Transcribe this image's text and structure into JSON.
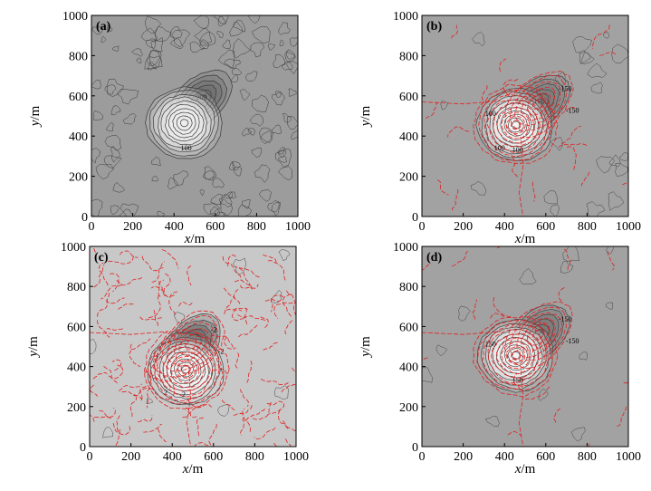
{
  "chart_data": [
    {
      "type": "contour",
      "panel_label": "(a)",
      "xlabel_var": "x",
      "xlabel_unit": "/m",
      "ylabel_var": "y",
      "ylabel_unit": "/m",
      "xlim": [
        0,
        1000
      ],
      "ylim": [
        0,
        1000
      ],
      "x_ticks": [
        "0",
        "200",
        "400",
        "600",
        "800",
        "1000"
      ],
      "y_ticks": [
        "0",
        "200",
        "400",
        "600",
        "800",
        "1000"
      ],
      "background": "#9c9c9c",
      "features": [
        {
          "kind": "low",
          "center": [
            530,
            580
          ],
          "label": "-200"
        },
        {
          "kind": "high",
          "center": [
            450,
            465
          ],
          "label": "100"
        }
      ],
      "red_overlay": false,
      "colors": {
        "low": "#6e6e6e",
        "high": "#ececec",
        "line": "#3a3a3a"
      }
    },
    {
      "type": "contour",
      "panel_label": "(b)",
      "xlabel_var": "x",
      "xlabel_unit": "/m",
      "ylabel_var": "y",
      "ylabel_unit": "/m",
      "xlim": [
        0,
        1000
      ],
      "ylim": [
        0,
        1000
      ],
      "x_ticks": [
        "0",
        "200",
        "400",
        "600",
        "800",
        "1000"
      ],
      "y_ticks": [
        "0",
        "200",
        "400",
        "600",
        "800",
        "1000"
      ],
      "background": "#a2a2a2",
      "features": [
        {
          "kind": "low",
          "center": [
            565,
            560
          ],
          "label": "-150"
        },
        {
          "kind": "high",
          "center": [
            455,
            455
          ],
          "label": "100"
        }
      ],
      "contour_labels": [
        "-150",
        "-150",
        "100",
        "100"
      ],
      "red_overlay": true,
      "colors": {
        "low": "#7a7a7a",
        "high": "#f4f4f4",
        "line": "#444444",
        "red": "#e02020"
      }
    },
    {
      "type": "contour",
      "panel_label": "(c)",
      "xlabel_var": "x",
      "xlabel_unit": "/m",
      "ylabel_var": "y",
      "ylabel_unit": "/m",
      "xlim": [
        0,
        1000
      ],
      "ylim": [
        0,
        1000
      ],
      "x_ticks": [
        "0",
        "200",
        "400",
        "600",
        "800",
        "1000"
      ],
      "y_ticks": [
        "0",
        "200",
        "400",
        "600",
        "800",
        "1000"
      ],
      "background": "#c8c8c8",
      "features": [
        {
          "kind": "low",
          "center": [
            490,
            510
          ],
          "label": "-2"
        },
        {
          "kind": "high",
          "center": [
            465,
            385
          ],
          "label": "2"
        }
      ],
      "contour_labels": [
        "-2",
        "-2",
        "2",
        "2"
      ],
      "red_overlay": true,
      "colors": {
        "low": "#6a6a6a",
        "high": "#f4f4f4",
        "line": "#444444",
        "red": "#e02020"
      }
    },
    {
      "type": "contour",
      "panel_label": "(d)",
      "xlabel_var": "x",
      "xlabel_unit": "/m",
      "ylabel_var": "y",
      "ylabel_unit": "/m",
      "xlim": [
        0,
        1000
      ],
      "ylim": [
        0,
        1000
      ],
      "x_ticks": [
        "0",
        "200",
        "400",
        "600",
        "800",
        "1000"
      ],
      "y_ticks": [
        "0",
        "200",
        "400",
        "600",
        "800",
        "1000"
      ],
      "background": "#a2a2a2",
      "features": [
        {
          "kind": "low",
          "center": [
            565,
            560
          ],
          "label": "-150"
        },
        {
          "kind": "high",
          "center": [
            455,
            455
          ],
          "label": "150"
        }
      ],
      "contour_labels": [
        "-150",
        "-150",
        "150"
      ],
      "red_overlay": true,
      "colors": {
        "low": "#7a7a7a",
        "high": "#f4f4f4",
        "line": "#444444",
        "red": "#e02020"
      }
    }
  ]
}
